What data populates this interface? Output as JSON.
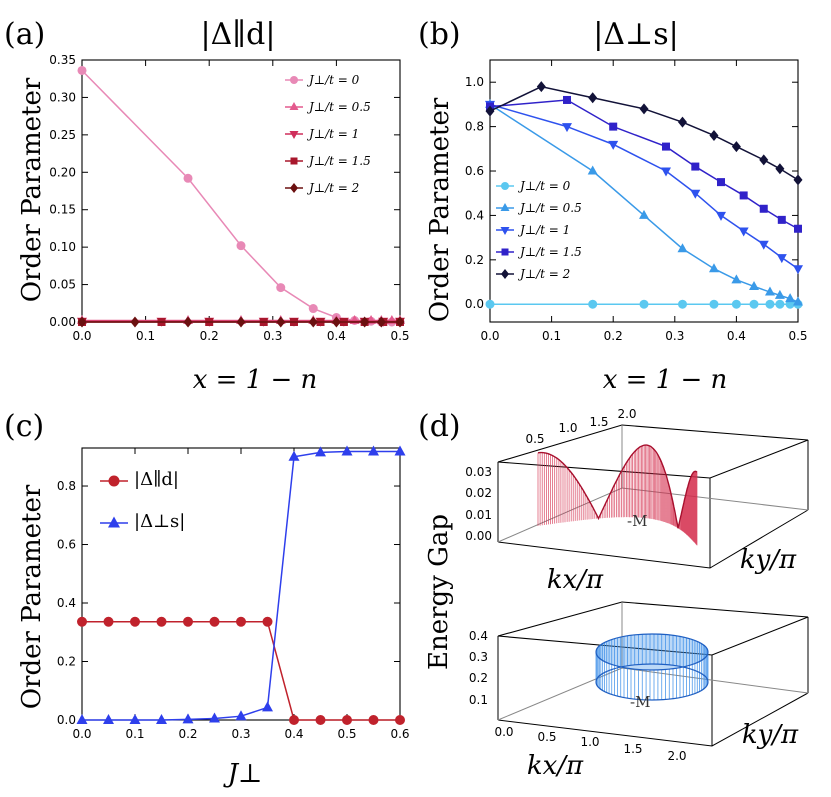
{
  "panel_labels": {
    "a": "(a)",
    "b": "(b)",
    "c": "(c)",
    "d": "(d)"
  },
  "chart_data": [
    {
      "id": "a",
      "type": "line",
      "title": "|Δ∥d|",
      "xlabel": "x = 1 − n",
      "ylabel": "Order Parameter",
      "xlim": [
        0,
        0.5
      ],
      "ylim": [
        0,
        0.35
      ],
      "xticks": [
        "0.0",
        "0.1",
        "0.2",
        "0.3",
        "0.4",
        "0.5"
      ],
      "yticks": [
        "0.00",
        "0.05",
        "0.10",
        "0.15",
        "0.20",
        "0.25",
        "0.30",
        "0.35"
      ],
      "legend_position": "top-right",
      "series": [
        {
          "name": "J⊥/t = 0",
          "color": "#e889b6",
          "marker": "circle",
          "x": [
            0,
            0.1667,
            0.25,
            0.3125,
            0.3636,
            0.4,
            0.4286,
            0.4545,
            0.4706,
            0.4872,
            0.5
          ],
          "y": [
            0.336,
            0.192,
            0.102,
            0.046,
            0.018,
            0.006,
            0.002,
            0.001,
            0.0,
            0.0,
            0.0
          ]
        },
        {
          "name": "J⊥/t = 0.5",
          "color": "#e35a8d",
          "marker": "triangle-up",
          "x": [
            0,
            0.1667,
            0.25,
            0.3125,
            0.3636,
            0.4,
            0.4286,
            0.4545,
            0.4706,
            0.4872,
            0.5
          ],
          "y": [
            0.002,
            0.002,
            0.002,
            0.002,
            0.002,
            0.002,
            0.002,
            0.002,
            0.002,
            0.002,
            0.002
          ]
        },
        {
          "name": "J⊥/t = 1",
          "color": "#cf2e5b",
          "marker": "triangle-down",
          "x": [
            0,
            0.125,
            0.2,
            0.2857,
            0.3333,
            0.375,
            0.4118,
            0.4444,
            0.4737,
            0.5
          ],
          "y": [
            0.001,
            0.001,
            0.001,
            0.001,
            0.001,
            0.001,
            0.001,
            0.001,
            0.001,
            0.001
          ]
        },
        {
          "name": "J⊥/t = 1.5",
          "color": "#a8172c",
          "marker": "square",
          "x": [
            0,
            0.125,
            0.2,
            0.2857,
            0.3333,
            0.375,
            0.4118,
            0.4444,
            0.4737,
            0.5
          ],
          "y": [
            0.0,
            0.0,
            0.0,
            0.0,
            0.0,
            0.0,
            0.0,
            0.0,
            0.0,
            0.0
          ]
        },
        {
          "name": "J⊥/t = 2",
          "color": "#6b1010",
          "marker": "diamond",
          "x": [
            0,
            0.0833,
            0.1667,
            0.25,
            0.3125,
            0.3636,
            0.4,
            0.4444,
            0.4706,
            0.5
          ],
          "y": [
            0.0,
            0.0,
            0.0,
            0.0,
            0.0,
            0.0,
            0.0,
            0.0,
            0.0,
            0.0
          ]
        }
      ]
    },
    {
      "id": "b",
      "type": "line",
      "title": "|Δ⊥s|",
      "xlabel": "x = 1 − n",
      "ylabel": "Order Parameter",
      "xlim": [
        0,
        0.5
      ],
      "ylim": [
        -0.08,
        1.1
      ],
      "xticks": [
        "0.0",
        "0.1",
        "0.2",
        "0.3",
        "0.4",
        "0.5"
      ],
      "yticks": [
        "0.0",
        "0.2",
        "0.4",
        "0.6",
        "0.8",
        "1.0"
      ],
      "legend_position": "bottom-left",
      "series": [
        {
          "name": "J⊥/t = 0",
          "color": "#5bc8f0",
          "marker": "circle",
          "x": [
            0,
            0.1667,
            0.25,
            0.3125,
            0.3636,
            0.4,
            0.4286,
            0.4545,
            0.4706,
            0.4872,
            0.5
          ],
          "y": [
            0,
            0,
            0,
            0,
            0,
            0,
            0,
            0,
            0,
            0,
            0
          ]
        },
        {
          "name": "J⊥/t = 0.5",
          "color": "#3a9ae8",
          "marker": "triangle-up",
          "x": [
            0,
            0.1667,
            0.25,
            0.3125,
            0.3636,
            0.4,
            0.4286,
            0.4545,
            0.4706,
            0.4872,
            0.5
          ],
          "y": [
            0.9,
            0.6,
            0.4,
            0.25,
            0.16,
            0.11,
            0.08,
            0.055,
            0.04,
            0.025,
            0.01
          ]
        },
        {
          "name": "J⊥/t = 1",
          "color": "#2e52ee",
          "marker": "triangle-down",
          "x": [
            0,
            0.125,
            0.2,
            0.2857,
            0.3333,
            0.375,
            0.4118,
            0.4444,
            0.4737,
            0.5
          ],
          "y": [
            0.9,
            0.8,
            0.72,
            0.6,
            0.5,
            0.4,
            0.33,
            0.27,
            0.21,
            0.16
          ]
        },
        {
          "name": "J⊥/t = 1.5",
          "color": "#3022c9",
          "marker": "square",
          "x": [
            0,
            0.125,
            0.2,
            0.2857,
            0.3333,
            0.375,
            0.4118,
            0.4444,
            0.4737,
            0.5
          ],
          "y": [
            0.89,
            0.92,
            0.8,
            0.71,
            0.62,
            0.55,
            0.49,
            0.43,
            0.38,
            0.34
          ]
        },
        {
          "name": "J⊥/t = 2",
          "color": "#121238",
          "marker": "diamond",
          "x": [
            0,
            0.0833,
            0.1667,
            0.25,
            0.3125,
            0.3636,
            0.4,
            0.4444,
            0.4706,
            0.5
          ],
          "y": [
            0.87,
            0.98,
            0.93,
            0.88,
            0.82,
            0.76,
            0.71,
            0.65,
            0.61,
            0.56
          ]
        }
      ]
    },
    {
      "id": "c",
      "type": "line",
      "xlabel": "J⊥",
      "ylabel": "Order Parameter",
      "xlim": [
        0,
        0.6
      ],
      "ylim": [
        0,
        0.93
      ],
      "xticks": [
        "0.0",
        "0.1",
        "0.2",
        "0.3",
        "0.4",
        "0.5",
        "0.6"
      ],
      "yticks": [
        "0.0",
        "0.2",
        "0.4",
        "0.6",
        "0.8"
      ],
      "legend_position": "top-left",
      "series": [
        {
          "name": "|Δ∥d|",
          "color": "#c0222c",
          "marker": "circle",
          "x": [
            0,
            0.05,
            0.1,
            0.15,
            0.2,
            0.25,
            0.3,
            0.35,
            0.4,
            0.45,
            0.5,
            0.55,
            0.6
          ],
          "y": [
            0.336,
            0.336,
            0.336,
            0.336,
            0.336,
            0.336,
            0.336,
            0.336,
            0.0,
            0.0,
            0.0,
            0.0,
            0.0
          ]
        },
        {
          "name": "|Δ⊥s|",
          "color": "#2e3fec",
          "marker": "triangle-up",
          "x": [
            0,
            0.05,
            0.1,
            0.15,
            0.2,
            0.25,
            0.3,
            0.35,
            0.4,
            0.45,
            0.5,
            0.55,
            0.6
          ],
          "y": [
            0.0,
            0.0,
            0.0,
            0.0,
            0.002,
            0.005,
            0.013,
            0.043,
            0.9,
            0.915,
            0.918,
            0.918,
            0.918
          ]
        }
      ]
    },
    {
      "id": "d",
      "type": "surface3d",
      "ylabel": "Energy Gap",
      "plots": [
        {
          "name": "top",
          "color": "#d42a4a",
          "x_ticks": [
            "0.5",
            "1.0",
            "1.5",
            "2.0"
          ],
          "z_ticks": [
            "0.03",
            "0.02",
            "0.01",
            "0.00"
          ],
          "z_tick_values": [
            0.03,
            0.02,
            0.01,
            0.0
          ],
          "x_label": "kx/π",
          "y_label": "ky/π",
          "annotation": "-M"
        },
        {
          "name": "bottom",
          "color": "#3c8ee8",
          "x_ticks": [
            "0.0",
            "0.5",
            "1.0",
            "1.5",
            "2.0"
          ],
          "z_ticks": [
            "0.4",
            "0.3",
            "0.2",
            "0.1"
          ],
          "z_tick_values": [
            0.4,
            0.3,
            0.2,
            0.1
          ],
          "x_label": "kx/π",
          "y_label": "ky/π",
          "annotation": "-M"
        }
      ]
    }
  ]
}
